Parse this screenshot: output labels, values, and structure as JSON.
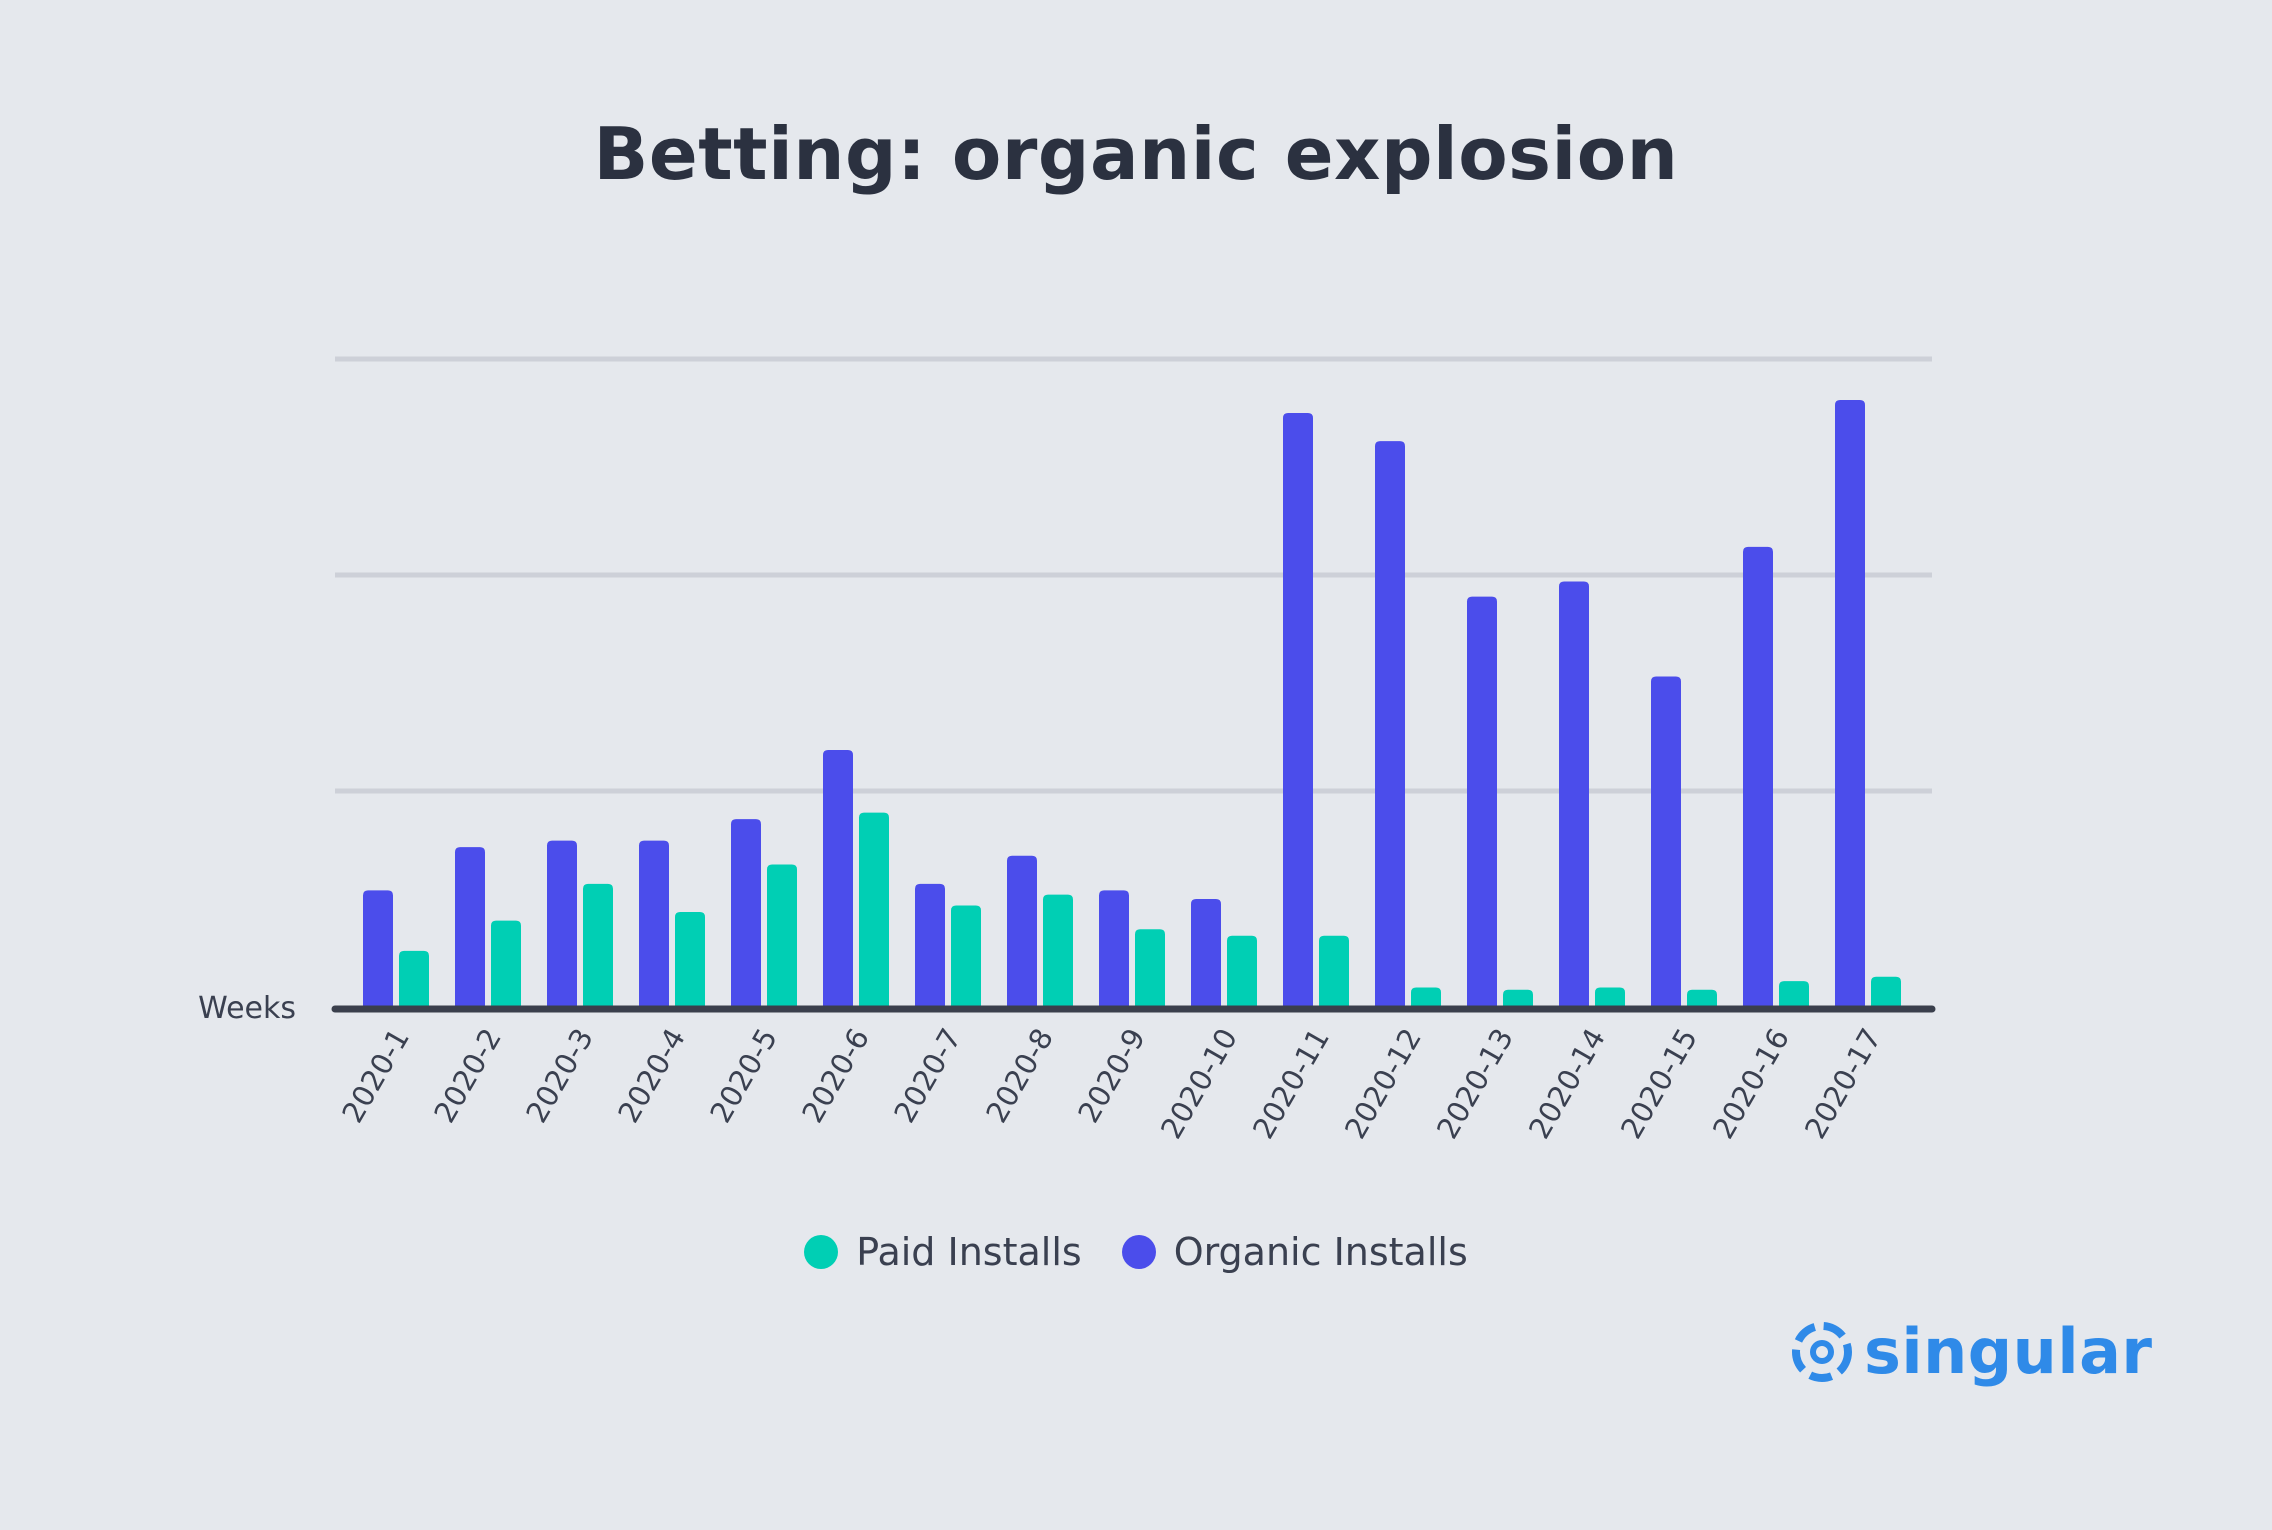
{
  "colors": {
    "paid": "#00CFB4",
    "organic": "#4B4DEB",
    "gridline": "#CDD0D8",
    "axis": "#3A3F4C",
    "brand": "#2F8AE8"
  },
  "brand": {
    "name": "singular",
    "icon": "singular-logo-icon"
  },
  "chart_data": {
    "type": "bar",
    "title": "Betting: organic explosion",
    "xlabel": "Weeks",
    "ylabel": "",
    "ylim": [
      0,
      300
    ],
    "grid": true,
    "legend_position": "bottom",
    "categories": [
      "2020-1",
      "2020-2",
      "2020-3",
      "2020-4",
      "2020-5",
      "2020-6",
      "2020-7",
      "2020-8",
      "2020-9",
      "2020-10",
      "2020-11",
      "2020-12",
      "2020-13",
      "2020-14",
      "2020-15",
      "2020-16",
      "2020-17"
    ],
    "series": [
      {
        "name": "Organic Installs",
        "values": [
          54,
          74,
          77,
          77,
          87,
          119,
          57,
          70,
          54,
          50,
          275,
          262,
          190,
          197,
          153,
          213,
          281
        ]
      },
      {
        "name": "Paid Installs",
        "values": [
          26,
          40,
          57,
          44,
          66,
          90,
          47,
          52,
          36,
          33,
          33,
          9,
          8,
          9,
          8,
          12,
          14
        ]
      }
    ],
    "legend_order": [
      "Paid Installs",
      "Organic Installs"
    ]
  }
}
